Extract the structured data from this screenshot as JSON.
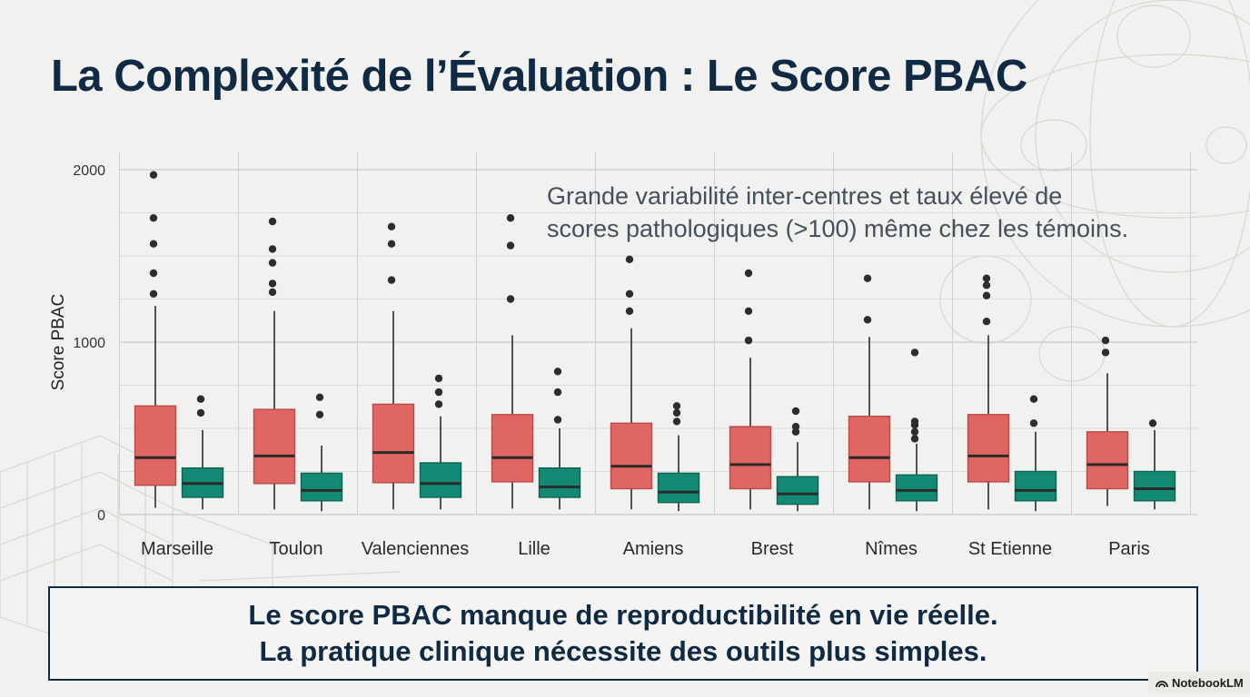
{
  "title": "La Complexité de l’Évaluation : Le Score PBAC",
  "annotation": {
    "line1": "Grande variabilité inter-centres et taux élevé de",
    "line2": "scores pathologiques (>100) même chez les témoins."
  },
  "conclusion": {
    "line1": "Le score PBAC manque de reproductibilité en vie réelle.",
    "line2": "La pratique clinique nécessite des outils plus simples."
  },
  "watermark": {
    "label": "NotebookLM",
    "icon": "notebooklm-logo-icon"
  },
  "colors": {
    "group1": "#e06663",
    "group1_edge": "#b84b48",
    "group2": "#138a73",
    "group2_edge": "#0d6453",
    "text_dark": "#102a43",
    "grid": "#cfcfcf"
  },
  "chart_data": {
    "type": "boxplot",
    "title": "",
    "xlabel": "",
    "ylabel": "Score PBAC",
    "ylim": [
      0,
      2000
    ],
    "yticks": [
      0,
      1000,
      2000
    ],
    "grid": true,
    "categories": [
      "Marseille",
      "Toulon",
      "Valenciennes",
      "Lille",
      "Amiens",
      "Brest",
      "Nîmes",
      "St Etienne",
      "Paris"
    ],
    "series": [
      {
        "name": "group-1",
        "color": "#e06663",
        "boxes": [
          {
            "whislo": 40,
            "q1": 170,
            "med": 330,
            "q3": 630,
            "whishi": 1210,
            "fliers": [
              1280,
              1400,
              1570,
              1720,
              1970
            ]
          },
          {
            "whislo": 30,
            "q1": 180,
            "med": 340,
            "q3": 610,
            "whishi": 1180,
            "fliers": [
              1290,
              1340,
              1460,
              1540,
              1700
            ]
          },
          {
            "whislo": 30,
            "q1": 185,
            "med": 360,
            "q3": 640,
            "whishi": 1180,
            "fliers": [
              1360,
              1570,
              1670
            ]
          },
          {
            "whislo": 35,
            "q1": 190,
            "med": 330,
            "q3": 580,
            "whishi": 1040,
            "fliers": [
              1250,
              1560,
              1720
            ]
          },
          {
            "whislo": 30,
            "q1": 150,
            "med": 280,
            "q3": 530,
            "whishi": 1080,
            "fliers": [
              1180,
              1280,
              1480
            ]
          },
          {
            "whislo": 30,
            "q1": 150,
            "med": 290,
            "q3": 510,
            "whishi": 910,
            "fliers": [
              1010,
              1180,
              1400
            ]
          },
          {
            "whislo": 30,
            "q1": 190,
            "med": 330,
            "q3": 570,
            "whishi": 1030,
            "fliers": [
              1130,
              1370
            ]
          },
          {
            "whislo": 30,
            "q1": 190,
            "med": 340,
            "q3": 580,
            "whishi": 1040,
            "fliers": [
              1120,
              1270,
              1330,
              1370
            ]
          },
          {
            "whislo": 50,
            "q1": 150,
            "med": 290,
            "q3": 480,
            "whishi": 820,
            "fliers": [
              940,
              1010
            ]
          }
        ]
      },
      {
        "name": "group-2",
        "color": "#138a73",
        "boxes": [
          {
            "whislo": 30,
            "q1": 100,
            "med": 180,
            "q3": 270,
            "whishi": 490,
            "fliers": [
              590,
              670
            ]
          },
          {
            "whislo": 20,
            "q1": 80,
            "med": 140,
            "q3": 240,
            "whishi": 400,
            "fliers": [
              580,
              680
            ]
          },
          {
            "whislo": 30,
            "q1": 100,
            "med": 180,
            "q3": 300,
            "whishi": 570,
            "fliers": [
              640,
              710,
              790
            ]
          },
          {
            "whislo": 30,
            "q1": 100,
            "med": 160,
            "q3": 270,
            "whishi": 500,
            "fliers": [
              550,
              710,
              830
            ]
          },
          {
            "whislo": 20,
            "q1": 70,
            "med": 130,
            "q3": 240,
            "whishi": 460,
            "fliers": [
              540,
              590,
              630
            ]
          },
          {
            "whislo": 20,
            "q1": 60,
            "med": 120,
            "q3": 220,
            "whishi": 420,
            "fliers": [
              480,
              510,
              600
            ]
          },
          {
            "whislo": 20,
            "q1": 80,
            "med": 140,
            "q3": 230,
            "whishi": 410,
            "fliers": [
              440,
              480,
              520,
              540,
              940
            ]
          },
          {
            "whislo": 20,
            "q1": 80,
            "med": 140,
            "q3": 250,
            "whishi": 480,
            "fliers": [
              530,
              670
            ]
          },
          {
            "whislo": 30,
            "q1": 80,
            "med": 150,
            "q3": 250,
            "whishi": 490,
            "fliers": [
              530
            ]
          }
        ]
      }
    ]
  }
}
